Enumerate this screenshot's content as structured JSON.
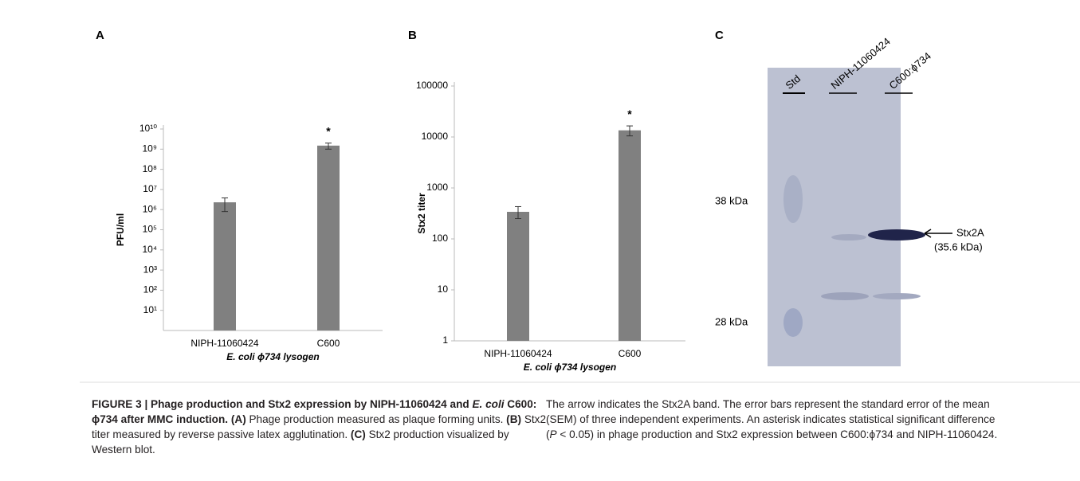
{
  "chart_data": [
    {
      "type": "bar",
      "panel": "A",
      "y_label": "PFU/ml",
      "x_label": "E. coli ϕ734 lysogen",
      "categories": [
        "NIPH-11060424",
        "C600"
      ],
      "values": [
        2300000,
        1500000000
      ],
      "errors": [
        1500000,
        500000000
      ],
      "markers": [
        null,
        "*"
      ],
      "color": "#808080",
      "log_scale": true,
      "ylim": [
        1,
        10000000000
      ],
      "yticks": [
        {
          "value": 10,
          "label": "10¹"
        },
        {
          "value": 100,
          "label": "10²"
        },
        {
          "value": 1000,
          "label": "10³"
        },
        {
          "value": 10000,
          "label": "10⁴"
        },
        {
          "value": 100000,
          "label": "10⁵"
        },
        {
          "value": 1000000,
          "label": "10⁶"
        },
        {
          "value": 10000000,
          "label": "10⁷"
        },
        {
          "value": 100000000,
          "label": "10⁸"
        },
        {
          "value": 1000000000,
          "label": "10⁹"
        },
        {
          "value": 10000000000,
          "label": "10¹⁰"
        }
      ]
    },
    {
      "type": "bar",
      "panel": "B",
      "y_label": "Stx2 titer",
      "x_label": "E. coli ϕ734 lysogen",
      "categories": [
        "NIPH-11060424",
        "C600"
      ],
      "values": [
        340,
        13500
      ],
      "errors": [
        90,
        3000
      ],
      "markers": [
        null,
        "*"
      ],
      "color": "#808080",
      "log_scale": true,
      "ylim": [
        1,
        100000
      ],
      "yticks": [
        1,
        10,
        100,
        1000,
        10000,
        100000
      ]
    }
  ],
  "gel": {
    "panel": "C",
    "lanes": [
      "Std",
      "NIPH-11060424",
      "C600:ϕ734"
    ],
    "markers": [
      "38 kDa",
      "28 kDa"
    ],
    "band_label": "Stx2A",
    "band_size": "(35.6 kDa)"
  },
  "caption": {
    "left": [
      "FIGURE 3 | Phage production and Stx2 expression by NIPH-11060424 and ",
      "E. coli",
      " C600: ϕ734 after MMC induction. ",
      "(A)",
      " Phage production measured as plaque forming units. ",
      "(B)",
      " Stx2 titer measured by reverse passive latex agglutination. ",
      "(C)",
      " Stx2 production visualized by Western blot."
    ],
    "right": [
      "The arrow indicates the Stx2A band. The error bars represent the standard error of the mean (SEM) of three independent experiments. An asterisk indicates statistical significant difference (",
      "P",
      " < 0.05) in phage production and Stx2 expression between C600:ϕ734 and NIPH-11060424."
    ]
  }
}
